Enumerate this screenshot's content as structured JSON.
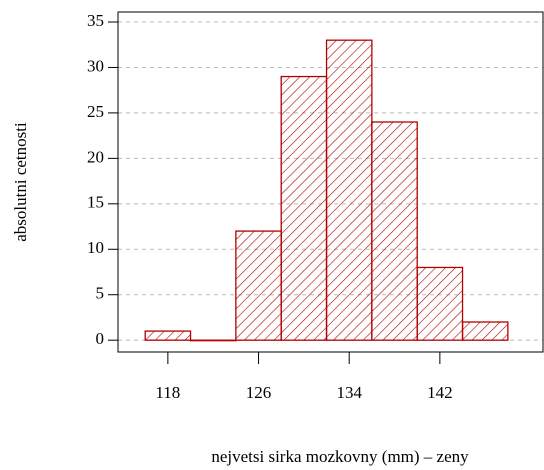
{
  "chart_data": {
    "type": "histogram",
    "x_label": "nejvetsi sirka mozkovny (mm) – zeny",
    "y_label": "absolutni cetnosti",
    "bins": [
      116,
      120,
      124,
      128,
      132,
      136,
      140,
      144,
      148
    ],
    "counts": [
      1,
      0,
      12,
      29,
      33,
      24,
      8,
      2
    ],
    "color": "#b30000",
    "xlim": [
      113.6,
      151.1
    ],
    "xticks": [
      118,
      126,
      134,
      142
    ],
    "ylim": [
      -1.3,
      36.1
    ],
    "yticks": [
      0,
      5,
      10,
      15,
      20,
      25,
      30,
      35
    ],
    "grid": true
  }
}
